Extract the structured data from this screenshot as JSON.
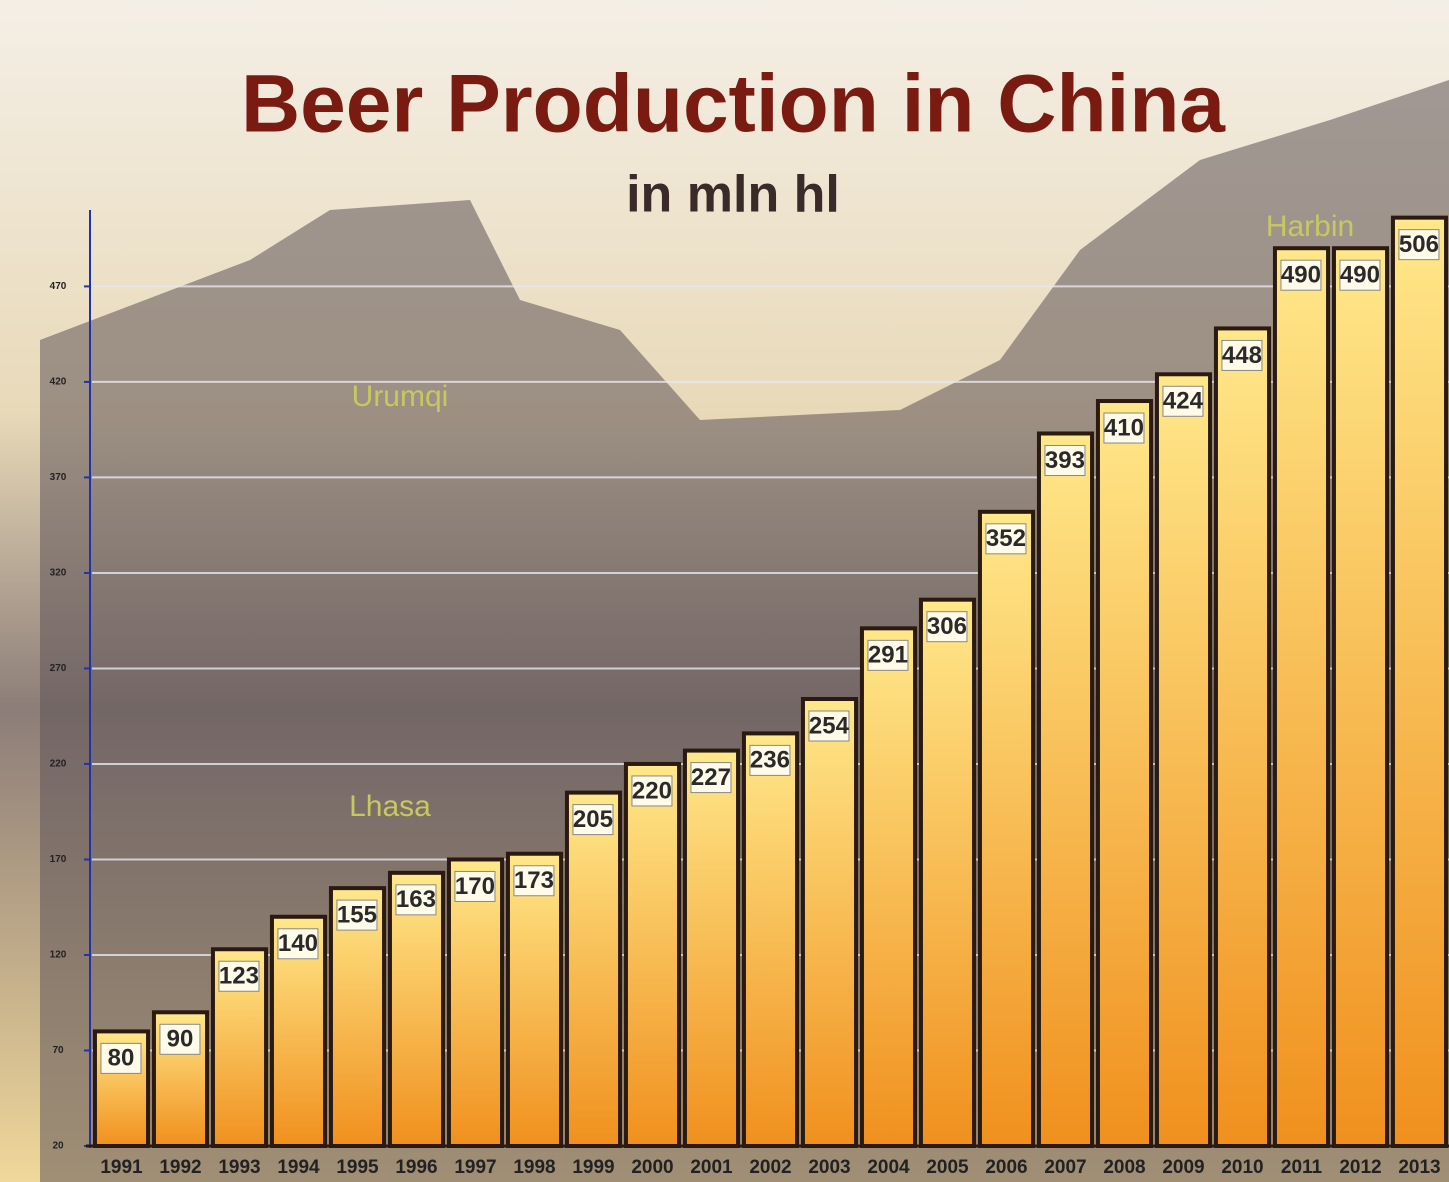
{
  "chart_data": {
    "type": "bar",
    "title": "Beer Production in China",
    "subtitle": "in mln hl",
    "categories": [
      "1991",
      "1992",
      "1993",
      "1994",
      "1995",
      "1996",
      "1997",
      "1998",
      "1999",
      "2000",
      "2001",
      "2002",
      "2003",
      "2004",
      "2005",
      "2006",
      "2007",
      "2008",
      "2009",
      "2010",
      "2011",
      "2012",
      "2013"
    ],
    "values": [
      80,
      90,
      123,
      140,
      155,
      163,
      170,
      173,
      205,
      220,
      227,
      236,
      254,
      291,
      306,
      352,
      393,
      410,
      424,
      448,
      490,
      490,
      506
    ],
    "color": "#f0901e",
    "ylim": [
      20,
      510
    ],
    "yticks": [
      20,
      70,
      120,
      170,
      220,
      270,
      320,
      370,
      420,
      470
    ],
    "grid": true,
    "annotations": [
      "Urumqi",
      "Lhasa",
      "Harbin"
    ]
  }
}
